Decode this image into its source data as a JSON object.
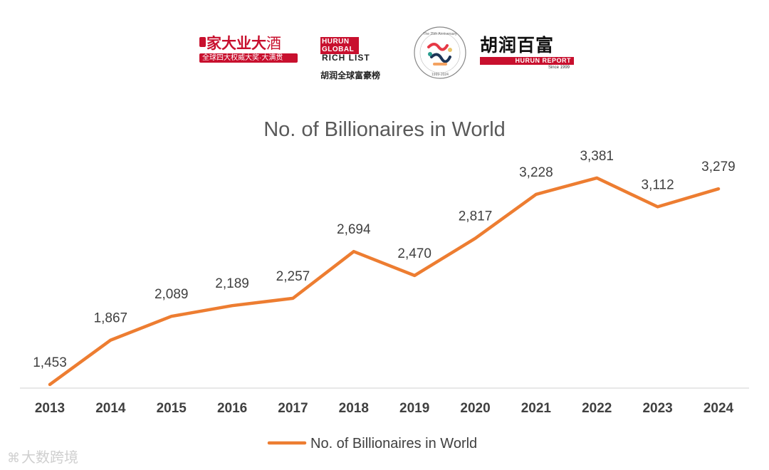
{
  "logos": {
    "logo1": {
      "main": "家大业大",
      "main_suffix": "酒",
      "sub": "全球四大权威大奖·大满贯"
    },
    "logo2": {
      "box": "HURUN GLOBAL",
      "rich_list": "RICH LIST",
      "cn": "胡润全球富豪榜"
    },
    "logo3": {
      "top_text": "The 25th Anniversary",
      "bottom_text": "1999-2024"
    },
    "logo4": {
      "cn": "胡润百富",
      "bar": "HURUN REPORT",
      "since": "Since 1999"
    }
  },
  "watermark": {
    "text": "大数跨境"
  },
  "colors": {
    "line": "#ed7d31",
    "axis": "#d9d9d9",
    "title": "#595959",
    "label": "#404040",
    "brand_red": "#c8102e"
  },
  "chart_data": {
    "type": "line",
    "title": "No. of Billionaires in World",
    "categories": [
      "2013",
      "2014",
      "2015",
      "2016",
      "2017",
      "2018",
      "2019",
      "2020",
      "2021",
      "2022",
      "2023",
      "2024"
    ],
    "series": [
      {
        "name": "No. of Billionaires in World",
        "values": [
          1453,
          1867,
          2089,
          2189,
          2257,
          2694,
          2470,
          2817,
          3228,
          3381,
          3112,
          3279
        ],
        "labels": [
          "1,453",
          "1,867",
          "2,089",
          "2,189",
          "2,257",
          "2,694",
          "2,470",
          "2,817",
          "3,228",
          "3,381",
          "3,112",
          "3,279"
        ]
      }
    ],
    "xlabel": "",
    "ylabel": "",
    "ylim": [
      1000,
      3500
    ],
    "grid": false,
    "legend": "bottom",
    "data_labels": true
  }
}
